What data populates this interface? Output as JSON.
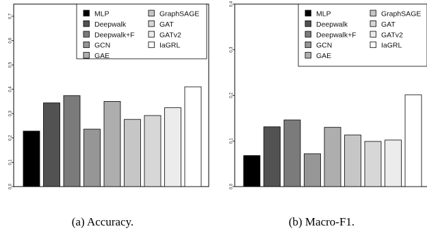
{
  "colors": {
    "MLP": "#000000",
    "Deepwalk": "#525252",
    "Deepwalk+F": "#7b7b7b",
    "GCN": "#969696",
    "GAE": "#aeaeae",
    "GraphSAGE": "#c6c6c6",
    "GAT": "#d7d7d7",
    "GATv2": "#ececec",
    "IaGRL": "#ffffff"
  },
  "legend_columns": [
    [
      "MLP",
      "Deepwalk",
      "Deepwalk+F",
      "GCN",
      "GAE"
    ],
    [
      "GraphSAGE",
      "GAT",
      "GATv2",
      "IaGRL"
    ]
  ],
  "chart_data": [
    {
      "type": "bar",
      "caption": "(a) Accuracy.",
      "categories": [
        "MLP",
        "Deepwalk",
        "Deepwalk+F",
        "GCN",
        "GAE",
        "GraphSAGE",
        "GAT",
        "GATv2",
        "IaGRL"
      ],
      "values": [
        0.228,
        0.344,
        0.374,
        0.236,
        0.35,
        0.276,
        0.292,
        0.324,
        0.41
      ],
      "ylim": [
        0,
        0.75
      ],
      "yticks": [
        "0.0",
        "0.1",
        "0.2",
        "0.3",
        "0.4",
        "0.5",
        "0.6",
        "0.7"
      ],
      "legend": "top-right",
      "grid": false
    },
    {
      "type": "bar",
      "caption": "(b) Macro-F1.",
      "categories": [
        "MLP",
        "Deepwalk",
        "Deepwalk+F",
        "GCN",
        "GAE",
        "GraphSAGE",
        "GAT",
        "GATv2",
        "IaGRL"
      ],
      "values": [
        0.068,
        0.131,
        0.146,
        0.072,
        0.13,
        0.113,
        0.099,
        0.102,
        0.201
      ],
      "ylim": [
        0,
        0.4
      ],
      "yticks": [
        "0.0",
        "0.1",
        "0.2",
        "0.3",
        "0.4"
      ],
      "legend": "top-right",
      "grid": false
    }
  ]
}
